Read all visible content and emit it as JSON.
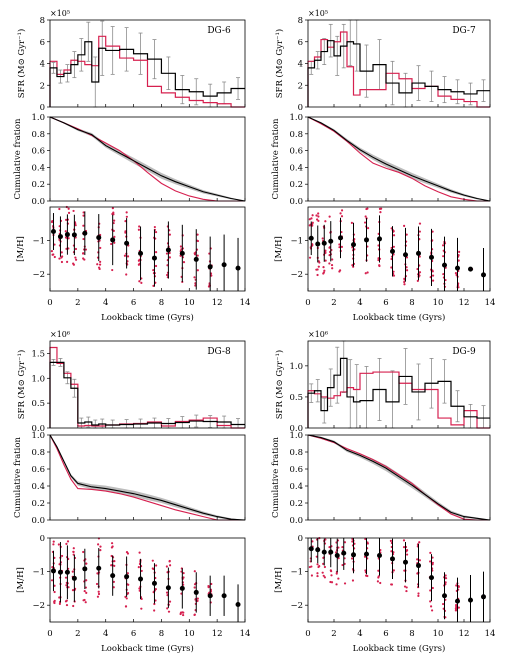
{
  "colors": {
    "observed": "#000000",
    "model": "#d6204f",
    "band": "#bdbdbd",
    "errorbar": "#8c8c8c"
  },
  "shared": {
    "xlabel": "Lookback time (Gyrs)",
    "sfr_ylabel": "SFR (M⊙ Gyr⁻¹)",
    "cum_ylabel": "Cumulative fration",
    "met_ylabel": "[M/H]",
    "xticks": [
      "0",
      "2",
      "4",
      "6",
      "8",
      "10",
      "12",
      "14"
    ],
    "cum_yticks": [
      "0.0",
      "0.2",
      "0.4",
      "0.6",
      "0.8",
      "1.0"
    ]
  },
  "chart_data": [
    {
      "title": "DG-6",
      "sfr": {
        "type": "step",
        "scale_label": "×10⁵",
        "ylim": [
          0,
          8
        ],
        "yticks": [
          "0",
          "2",
          "4",
          "6",
          "8"
        ],
        "edges": [
          0,
          0.5,
          1,
          1.5,
          2,
          2.5,
          3,
          3.5,
          4,
          5,
          6,
          7,
          8,
          9,
          10,
          11,
          12,
          13,
          14
        ],
        "observed": [
          3.6,
          2.8,
          3.1,
          3.9,
          4.8,
          6.0,
          2.3,
          5.4,
          5.2,
          5.3,
          4.9,
          4.4,
          3.1,
          1.6,
          1.4,
          1.0,
          1.3,
          1.7
        ],
        "model": [
          4.2,
          3.0,
          3.4,
          4.3,
          4.2,
          3.9,
          3.8,
          6.5,
          5.6,
          4.5,
          4.3,
          1.9,
          1.3,
          0.9,
          0.6,
          0.4,
          0.3,
          0.0
        ],
        "err": [
          0.5,
          0.6,
          0.8,
          1.2,
          1.5,
          1.8,
          2.3,
          2.5,
          2.2,
          2.0,
          1.9,
          1.8,
          1.5,
          1.3,
          1.2,
          1.1,
          1.0,
          1.0
        ]
      },
      "cumulative": {
        "type": "line",
        "ylim": [
          0,
          1
        ],
        "x": [
          0,
          1,
          2,
          3,
          4,
          5,
          6,
          7,
          8,
          9,
          10,
          11,
          12,
          13,
          14
        ],
        "observed": [
          1.0,
          0.93,
          0.85,
          0.79,
          0.66,
          0.57,
          0.48,
          0.39,
          0.3,
          0.23,
          0.17,
          0.11,
          0.07,
          0.03,
          0.0
        ],
        "model": [
          1.0,
          0.93,
          0.86,
          0.78,
          0.69,
          0.6,
          0.48,
          0.34,
          0.21,
          0.12,
          0.06,
          0.02,
          0.0,
          0.0,
          0.0
        ],
        "band": [
          0.0,
          0.01,
          0.015,
          0.02,
          0.025,
          0.03,
          0.035,
          0.035,
          0.035,
          0.03,
          0.025,
          0.02,
          0.015,
          0.01,
          0.0
        ]
      },
      "metallicity": {
        "type": "scatter",
        "ylim": [
          -2.5,
          0
        ],
        "yticks": [
          "-2",
          "-1"
        ],
        "x": [
          0.25,
          0.75,
          1.25,
          1.75,
          2.5,
          3.5,
          4.5,
          5.5,
          6.5,
          7.5,
          8.5,
          9.5,
          10.5,
          11.5,
          12.5,
          13.5
        ],
        "y": [
          -0.73,
          -0.88,
          -0.82,
          -0.83,
          -0.78,
          -0.91,
          -0.98,
          -1.08,
          -1.38,
          -1.52,
          -1.28,
          -1.38,
          -1.56,
          -1.78,
          -1.72,
          -1.82
        ],
        "err": [
          0.55,
          0.6,
          0.6,
          0.6,
          0.65,
          0.7,
          0.75,
          0.75,
          0.8,
          0.85,
          0.85,
          0.85,
          0.9,
          0.9,
          0.9,
          0.9
        ],
        "spread": [
          0.9,
          0.9,
          0.9,
          0.9,
          0.9,
          0.95,
          1.0,
          1.0,
          1.0,
          1.0,
          0.9,
          0.85,
          0.8,
          0.7,
          0.0,
          0.0
        ]
      }
    },
    {
      "title": "DG-7",
      "sfr": {
        "type": "step",
        "scale_label": "×10⁵",
        "ylim": [
          0,
          8
        ],
        "yticks": [
          "0",
          "2",
          "4",
          "6",
          "8"
        ],
        "edges": [
          0,
          0.5,
          1,
          1.5,
          2,
          2.5,
          3,
          3.5,
          4,
          5,
          6,
          7,
          8,
          9,
          10,
          11,
          12,
          13,
          14
        ],
        "observed": [
          3.6,
          4.3,
          5.1,
          6.1,
          4.7,
          5.6,
          6.0,
          5.8,
          3.3,
          3.9,
          2.2,
          1.3,
          2.2,
          1.9,
          1.6,
          1.4,
          1.2,
          1.5
        ],
        "model": [
          4.2,
          4.6,
          6.2,
          5.5,
          6.0,
          6.9,
          3.7,
          1.1,
          1.6,
          1.6,
          3.1,
          2.6,
          1.7,
          1.9,
          1.0,
          0.7,
          0.5,
          0.0
        ],
        "err": [
          0.6,
          0.8,
          1.2,
          1.5,
          1.8,
          2.0,
          2.2,
          2.5,
          2.4,
          2.3,
          2.0,
          1.8,
          1.6,
          1.4,
          1.2,
          1.1,
          1.0,
          1.0
        ]
      },
      "cumulative": {
        "type": "line",
        "ylim": [
          0,
          1
        ],
        "x": [
          0,
          1,
          2,
          3,
          4,
          5,
          6,
          7,
          8,
          9,
          10,
          11,
          12,
          13,
          14
        ],
        "observed": [
          1.0,
          0.93,
          0.84,
          0.72,
          0.61,
          0.52,
          0.44,
          0.37,
          0.3,
          0.24,
          0.18,
          0.12,
          0.07,
          0.03,
          0.0
        ],
        "model": [
          1.0,
          0.92,
          0.83,
          0.71,
          0.57,
          0.45,
          0.39,
          0.34,
          0.27,
          0.18,
          0.11,
          0.05,
          0.02,
          0.0,
          0.0
        ],
        "band": [
          0.0,
          0.01,
          0.015,
          0.02,
          0.025,
          0.03,
          0.035,
          0.035,
          0.035,
          0.03,
          0.025,
          0.02,
          0.015,
          0.01,
          0.0
        ]
      },
      "metallicity": {
        "type": "scatter",
        "ylim": [
          -2.5,
          0
        ],
        "yticks": [
          "-2",
          "-1"
        ],
        "x": [
          0.25,
          0.75,
          1.25,
          1.75,
          2.5,
          3.5,
          4.5,
          5.5,
          6.5,
          7.5,
          8.5,
          9.5,
          10.5,
          11.5,
          12.5,
          13.5
        ],
        "y": [
          -0.93,
          -1.1,
          -1.08,
          -1.02,
          -0.92,
          -1.12,
          -0.98,
          -0.95,
          -1.32,
          -1.42,
          -1.38,
          -1.5,
          -1.73,
          -1.82,
          -1.85,
          -2.02
        ],
        "err": [
          0.5,
          0.55,
          0.55,
          0.6,
          0.6,
          0.65,
          0.65,
          0.7,
          0.75,
          0.8,
          0.8,
          0.85,
          0.85,
          0.9,
          0.0,
          0.8
        ],
        "spread": [
          0.9,
          0.95,
          0.95,
          1.0,
          1.0,
          1.0,
          1.0,
          1.0,
          0.9,
          0.9,
          0.9,
          0.8,
          0.7,
          0.6,
          0.0,
          0.0
        ]
      }
    },
    {
      "title": "DG-8",
      "sfr": {
        "type": "step",
        "scale_label": "×10⁶",
        "ylim": [
          0,
          1.75
        ],
        "yticks": [
          "0.0",
          "0.5",
          "1.0",
          "1.5"
        ],
        "edges": [
          0,
          0.5,
          1,
          1.5,
          2,
          2.5,
          3,
          3.5,
          4,
          5,
          6,
          7,
          8,
          9,
          10,
          11,
          12,
          13,
          14
        ],
        "observed": [
          1.32,
          1.32,
          1.01,
          0.8,
          0.1,
          0.12,
          0.06,
          0.08,
          0.06,
          0.07,
          0.08,
          0.1,
          0.09,
          0.11,
          0.14,
          0.13,
          0.12,
          0.07
        ],
        "model": [
          1.62,
          1.3,
          1.1,
          0.88,
          0.04,
          0.05,
          0.04,
          0.04,
          0.06,
          0.08,
          0.09,
          0.12,
          0.04,
          0.13,
          0.16,
          0.2,
          0.05,
          0.0
        ],
        "err": [
          0.06,
          0.08,
          0.12,
          0.18,
          0.1,
          0.1,
          0.1,
          0.1,
          0.1,
          0.1,
          0.1,
          0.1,
          0.1,
          0.12,
          0.12,
          0.12,
          0.12,
          0.12
        ]
      },
      "cumulative": {
        "type": "line",
        "ylim": [
          0,
          1
        ],
        "x": [
          0,
          0.5,
          1,
          1.5,
          2,
          3,
          4,
          5,
          6,
          7,
          8,
          9,
          10,
          11,
          12,
          13,
          14
        ],
        "observed": [
          1.0,
          0.86,
          0.69,
          0.52,
          0.43,
          0.39,
          0.37,
          0.34,
          0.31,
          0.27,
          0.23,
          0.18,
          0.13,
          0.08,
          0.04,
          0.01,
          0.0
        ],
        "model": [
          1.0,
          0.84,
          0.65,
          0.48,
          0.37,
          0.36,
          0.34,
          0.31,
          0.27,
          0.22,
          0.17,
          0.12,
          0.08,
          0.04,
          0.0,
          0.0,
          0.0
        ],
        "band": [
          0.0,
          0.01,
          0.015,
          0.02,
          0.025,
          0.03,
          0.035,
          0.035,
          0.035,
          0.035,
          0.03,
          0.03,
          0.025,
          0.02,
          0.015,
          0.01,
          0.0
        ]
      },
      "metallicity": {
        "type": "scatter",
        "ylim": [
          -2.5,
          0
        ],
        "yticks": [
          "-2",
          "-1",
          "0"
        ],
        "x": [
          0.25,
          0.75,
          1.25,
          1.75,
          2.5,
          3.5,
          4.5,
          5.5,
          6.5,
          7.5,
          8.5,
          9.5,
          10.5,
          11.5,
          12.5,
          13.5
        ],
        "y": [
          -0.98,
          -1.02,
          -1.02,
          -1.2,
          -0.92,
          -0.9,
          -1.12,
          -1.15,
          -1.22,
          -1.35,
          -1.48,
          -1.5,
          -1.62,
          -1.72,
          -1.72,
          -1.98
        ],
        "err": [
          0.6,
          0.9,
          0.8,
          0.7,
          0.6,
          0.6,
          0.6,
          0.6,
          0.6,
          0.6,
          0.6,
          0.6,
          0.6,
          0.6,
          0.6,
          0.6
        ],
        "spread": [
          1.0,
          1.0,
          1.0,
          1.0,
          1.0,
          1.0,
          1.0,
          1.0,
          0.9,
          0.9,
          0.9,
          0.8,
          0.7,
          0.5,
          0.0,
          0.0
        ]
      }
    },
    {
      "title": "DG-9",
      "sfr": {
        "type": "step",
        "scale_label": "×10⁶",
        "ylim": [
          0,
          1.4
        ],
        "yticks": [
          "0.0",
          "0.5",
          "1.0"
        ],
        "edges": [
          0,
          0.5,
          1,
          1.5,
          2,
          2.5,
          3,
          3.5,
          4,
          5,
          6,
          7,
          8,
          9,
          10,
          11,
          12,
          13,
          14
        ],
        "observed": [
          0.56,
          0.6,
          0.28,
          0.65,
          0.85,
          1.12,
          0.5,
          0.42,
          0.44,
          0.62,
          0.42,
          0.83,
          0.58,
          0.72,
          0.75,
          0.35,
          0.18,
          0.16
        ],
        "model": [
          0.6,
          0.55,
          0.5,
          0.48,
          0.52,
          0.58,
          0.65,
          0.62,
          0.88,
          0.9,
          0.9,
          0.72,
          0.62,
          0.62,
          0.16,
          0.05,
          0.28,
          0.0
        ],
        "err": [
          0.15,
          0.18,
          0.2,
          0.3,
          0.45,
          0.55,
          0.6,
          0.6,
          0.55,
          0.5,
          0.5,
          0.45,
          0.45,
          0.4,
          0.35,
          0.25,
          0.2,
          0.2
        ]
      },
      "cumulative": {
        "type": "line",
        "ylim": [
          0,
          1
        ],
        "x": [
          0,
          1,
          2,
          3,
          4,
          5,
          6,
          7,
          8,
          9,
          10,
          11,
          12,
          13,
          14
        ],
        "observed": [
          1.0,
          0.97,
          0.92,
          0.82,
          0.76,
          0.69,
          0.61,
          0.51,
          0.41,
          0.3,
          0.19,
          0.09,
          0.04,
          0.02,
          0.0
        ],
        "model": [
          1.0,
          0.96,
          0.91,
          0.84,
          0.78,
          0.71,
          0.63,
          0.53,
          0.43,
          0.3,
          0.18,
          0.07,
          0.01,
          0.0,
          0.0
        ],
        "band": [
          0.0,
          0.01,
          0.015,
          0.02,
          0.025,
          0.03,
          0.035,
          0.035,
          0.035,
          0.03,
          0.025,
          0.02,
          0.015,
          0.01,
          0.0
        ]
      },
      "metallicity": {
        "type": "scatter",
        "ylim": [
          -2.5,
          0
        ],
        "yticks": [
          "-2",
          "-1",
          "0"
        ],
        "x": [
          0.25,
          0.75,
          1.25,
          1.75,
          2.25,
          2.75,
          3.5,
          4.5,
          5.5,
          6.5,
          7.5,
          8.5,
          9.5,
          10.5,
          11.5,
          12.5,
          13.5
        ],
        "y": [
          -0.32,
          -0.35,
          -0.42,
          -0.42,
          -0.52,
          -0.45,
          -0.5,
          -0.48,
          -0.52,
          -0.62,
          -0.72,
          -0.82,
          -1.18,
          -1.72,
          -1.88,
          -1.85,
          -1.75
        ],
        "err": [
          0.4,
          0.4,
          0.4,
          0.45,
          0.5,
          0.5,
          0.55,
          0.6,
          0.6,
          0.6,
          0.6,
          0.65,
          0.7,
          0.7,
          0.7,
          0.75,
          0.75
        ],
        "spread": [
          0.8,
          0.85,
          0.9,
          0.9,
          0.9,
          1.0,
          1.0,
          1.0,
          1.1,
          1.1,
          1.1,
          1.0,
          1.0,
          0.8,
          0.6,
          0.0,
          0.0
        ]
      }
    }
  ]
}
